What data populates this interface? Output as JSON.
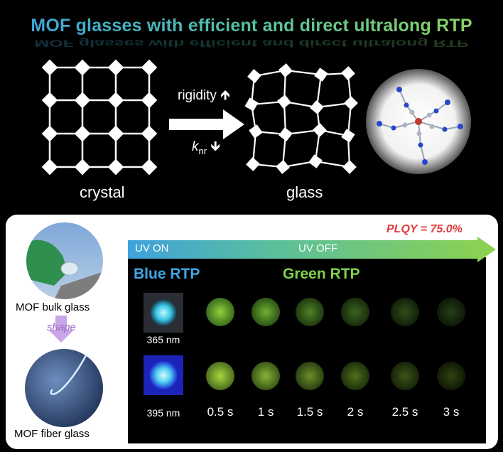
{
  "title": "MOF glasses with efficient and direct ultralong RTP",
  "top": {
    "crystal_label": "crystal",
    "glass_label": "glass",
    "rigidity_label": "rigidity",
    "knr_main": "k",
    "knr_sub": "nr"
  },
  "bottom": {
    "plqy": "PLQY = 75.0%",
    "uv_on": "UV ON",
    "uv_off": "UV OFF",
    "blue_rtp": "Blue RTP",
    "green_rtp": "Green RTP",
    "bulk_glass": "MOF bulk glass",
    "shape": "shape",
    "fiber_glass": "MOF fiber glass",
    "wavelengths": [
      "365 nm",
      "395 nm"
    ],
    "times": [
      "0.5 s",
      "1 s",
      "1.5 s",
      "2 s",
      "2.5 s",
      "3 s"
    ]
  },
  "colors": {
    "title_start": "#3aa3e0",
    "title_end": "#8fd55a",
    "blue_rtp": "#3ea8e6",
    "green_rtp": "#7fd24c",
    "plqy": "#e23a3a"
  }
}
